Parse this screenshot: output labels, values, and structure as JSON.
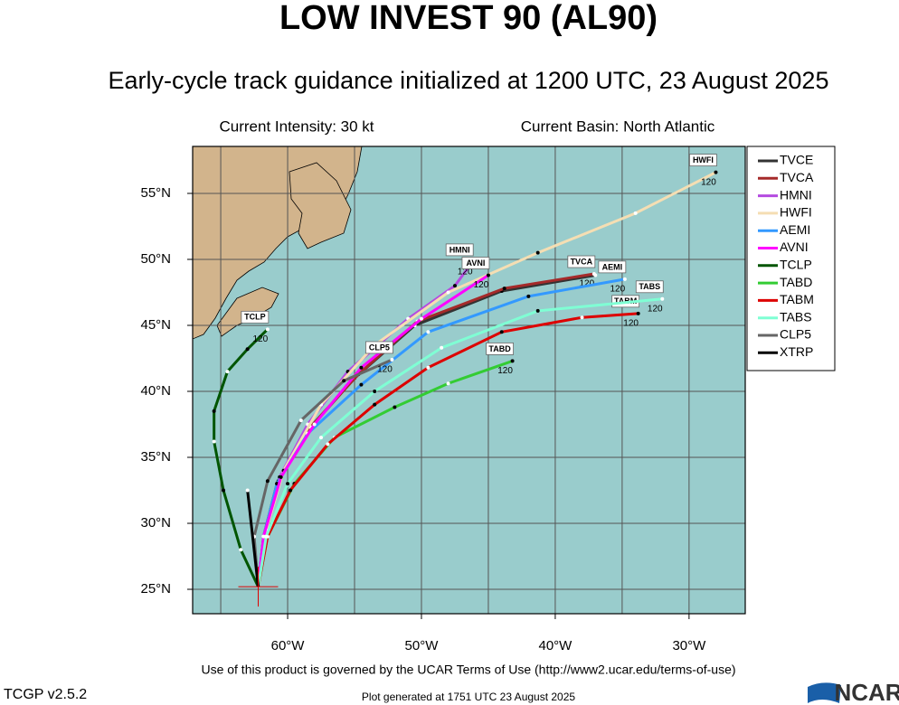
{
  "chart_data": {
    "type": "track-map",
    "title": "LOW INVEST 90 (AL90)",
    "subtitle": "Early-cycle track guidance initialized at 1200 UTC, 23 August 2025",
    "intensity": "Current Intensity: 30 kt",
    "basin": "Current Basin: North Atlantic",
    "terms": "Use of this product is governed by the UCAR Terms of Use (http://www2.ucar.edu/terms-of-use)",
    "version": "TCGP v2.5.2",
    "generated": "Plot generated at 1751 UTC   23 August 2025",
    "logo": "NCAR",
    "end_hour": 120,
    "xlim": [
      -67.1,
      -25.8
    ],
    "ylim": [
      23.15,
      58.56
    ],
    "xticks": [
      {
        "value": -60,
        "label": "60°W"
      },
      {
        "value": -50,
        "label": "50°W"
      },
      {
        "value": -40,
        "label": "40°W"
      },
      {
        "value": -30,
        "label": "30°W"
      }
    ],
    "xgrid": [
      -65,
      -55,
      -45,
      -35
    ],
    "yticks": [
      {
        "value": 25,
        "label": "25°N"
      },
      {
        "value": 30,
        "label": "30°N"
      },
      {
        "value": 35,
        "label": "35°N"
      },
      {
        "value": 40,
        "label": "40°N"
      },
      {
        "value": 45,
        "label": "45°N"
      },
      {
        "value": 50,
        "label": "50°N"
      },
      {
        "value": 55,
        "label": "55°N"
      }
    ],
    "start": {
      "lon": -62.2,
      "lat": 25.2
    },
    "series": [
      {
        "name": "TVCE",
        "color": "#333333",
        "lon": [
          -62.2,
          -61.8,
          -60.8,
          -58.5,
          -55,
          -50.5,
          -44,
          -37
        ],
        "lat": [
          25.2,
          29,
          33,
          37,
          41,
          45,
          47.6,
          48.8
        ]
      },
      {
        "name": "TVCA",
        "color": "#a52a2a",
        "lon": [
          -62.2,
          -61.8,
          -60.7,
          -58.3,
          -54.7,
          -50.3,
          -43.8,
          -37.1
        ],
        "lat": [
          25.2,
          29,
          33.2,
          37.3,
          41.3,
          45.3,
          47.8,
          48.9
        ],
        "tagged": true
      },
      {
        "name": "HMNI",
        "color": "#b44be0",
        "lon": [
          -62.2,
          -61.8,
          -60.6,
          -58.5,
          -55.5,
          -51,
          -47.5,
          -46.2
        ],
        "lat": [
          25.2,
          29,
          33.5,
          37.5,
          41.5,
          45.5,
          48,
          49.8
        ],
        "tagged": true
      },
      {
        "name": "HWFI",
        "color": "#f5deb3",
        "lon": [
          -62.2,
          -61.6,
          -60.3,
          -57.5,
          -53.5,
          -48,
          -41.3,
          -34,
          -28
        ],
        "lat": [
          25.2,
          29.5,
          34,
          39,
          43.5,
          47.5,
          50.5,
          53.5,
          56.6
        ],
        "tagged": true
      },
      {
        "name": "AEMI",
        "color": "#3399ff",
        "lon": [
          -62.2,
          -61.8,
          -60.8,
          -58.5,
          -54.5,
          -49.5,
          -42,
          -34.8
        ],
        "lat": [
          25.2,
          29,
          33,
          36.8,
          40.5,
          44.5,
          47.2,
          48.5
        ],
        "tagged": true
      },
      {
        "name": "AVNI",
        "color": "#ff00ff",
        "lon": [
          -62.2,
          -61.8,
          -60.5,
          -58,
          -54.5,
          -50,
          -45
        ],
        "lat": [
          25.2,
          29,
          33.5,
          37.5,
          41.8,
          45.5,
          48.8
        ],
        "tagged": true
      },
      {
        "name": "TCLP",
        "color": "#005500",
        "lon": [
          -62.2,
          -63.5,
          -64.8,
          -65.5,
          -65.5,
          -64.5,
          -63,
          -61.5
        ],
        "lat": [
          25.2,
          28,
          32.5,
          36.2,
          38.5,
          41.5,
          43.2,
          44.7
        ],
        "tagged": true
      },
      {
        "name": "TABD",
        "color": "#33cc33",
        "lon": [
          -62.2,
          -61.5,
          -59.5,
          -56.5,
          -52,
          -48,
          -43.2
        ],
        "lat": [
          25.2,
          29,
          33,
          36.5,
          38.8,
          40.6,
          42.3
        ],
        "tagged": true
      },
      {
        "name": "TABM",
        "color": "#dd0000",
        "lon": [
          -62.2,
          -61.5,
          -59.8,
          -57,
          -53.5,
          -49.5,
          -44,
          -38,
          -33.8
        ],
        "lat": [
          25.2,
          29,
          32.5,
          36,
          39,
          41.8,
          44.5,
          45.6,
          45.9
        ],
        "tagged": true
      },
      {
        "name": "TABS",
        "color": "#7fffd4",
        "lon": [
          -62.2,
          -61.6,
          -60,
          -57.5,
          -53.5,
          -48.5,
          -41.3,
          -32
        ],
        "lat": [
          25.2,
          29,
          33,
          36.5,
          40,
          43.3,
          46.1,
          47
        ],
        "tagged": true
      },
      {
        "name": "CLP5",
        "color": "#666666",
        "lon": [
          -62.2,
          -62.5,
          -61.5,
          -59,
          -55.8,
          -52.2
        ],
        "lat": [
          25.2,
          29,
          33.2,
          37.8,
          40.8,
          42.4
        ],
        "tagged": true
      },
      {
        "name": "XTRP",
        "color": "#000000",
        "lon": [
          -62.2,
          -63
        ],
        "lat": [
          25.2,
          32.5
        ]
      }
    ]
  }
}
